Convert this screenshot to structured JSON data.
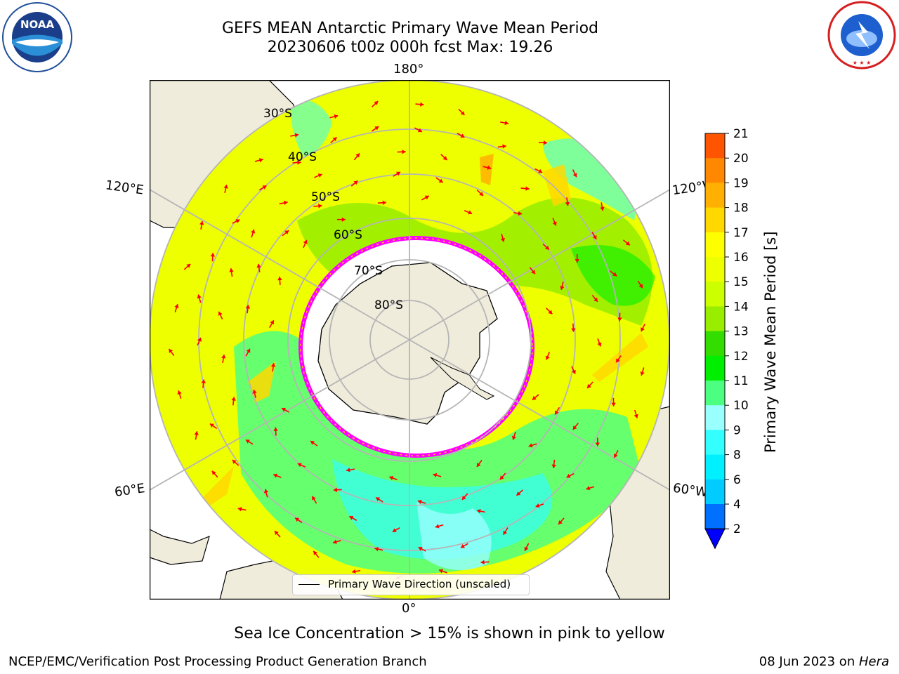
{
  "title": {
    "line1": "GEFS MEAN Antarctic Primary Wave Mean Period",
    "line2": "20230606 t00z 000h fcst   Max: 19.26"
  },
  "logos": {
    "left": "NOAA",
    "left_ring": "NATIONAL OCEANIC AND ATMOSPHERIC ADMINISTRATION · U.S. DEPARTMENT OF COMMERCE",
    "right_ring": "NATIONAL WEATHER SERVICE"
  },
  "map": {
    "projection": "south-polar-stereographic",
    "lon_labels": {
      "top": "180°",
      "bottom": "0°",
      "upper_left": "120°E",
      "upper_right": "120°W",
      "lower_left": "60°E",
      "lower_right": "60°W"
    },
    "lat_labels": [
      "30°S",
      "40°S",
      "50°S",
      "60°S",
      "70°S",
      "80°S"
    ],
    "legend_text": "Primary Wave Direction (unscaled)",
    "colors": {
      "land": "#efecdc",
      "ice_edge_1": "#ff00ff",
      "ice_edge_2": "#ffcc00",
      "grid": "#b5b5b5",
      "arrow": "#ff0000"
    }
  },
  "colorbar": {
    "label": "Primary Wave Mean Period [s]",
    "ticks": [
      "2",
      "4",
      "6",
      "8",
      "9",
      "10",
      "11",
      "12",
      "13",
      "14",
      "15",
      "16",
      "17",
      "18",
      "19",
      "20",
      "21"
    ],
    "colors": [
      "#0070ff",
      "#00ccff",
      "#00f0ff",
      "#33ffff",
      "#99ffff",
      "#4dff80",
      "#00ee00",
      "#33dd00",
      "#99ee00",
      "#ccff00",
      "#eeff00",
      "#ffff00",
      "#ffd800",
      "#ffb000",
      "#ff8800",
      "#ff5500",
      "#ff2a00",
      "#ff0000"
    ],
    "under_color": "#0000ff",
    "extend": "min"
  },
  "note": "Sea Ice Concentration > 15% is shown in pink to yellow",
  "footer": {
    "left": "NCEP/EMC/Verification Post Processing Product Generation Branch",
    "right_date": "08 Jun 2023 on ",
    "right_host": "Hera"
  }
}
